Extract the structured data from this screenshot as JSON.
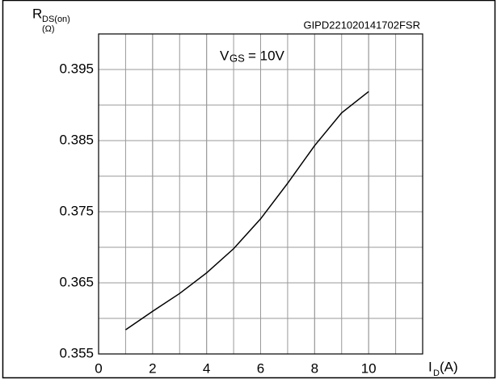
{
  "chart_data": {
    "type": "line",
    "code": "GIPD221020141702FSR",
    "annotation": {
      "main": "V",
      "sub": "GS",
      "rest": "= 10V"
    },
    "y_label": {
      "main": "R",
      "sub": "DS(on)",
      "unit": "(Ω)"
    },
    "x_label": {
      "main": "I",
      "sub": "D",
      "unit": "(A)"
    },
    "x": [
      1,
      2,
      3,
      4,
      5,
      6,
      7,
      8,
      9,
      10
    ],
    "series": [
      {
        "name": "VGS= 10V",
        "color": "#000000",
        "values": [
          0.3584,
          0.361,
          0.3635,
          0.3664,
          0.3698,
          0.374,
          0.379,
          0.3843,
          0.3889,
          0.3919
        ]
      }
    ],
    "xlim": [
      0,
      12
    ],
    "xticks": [
      0,
      2,
      4,
      6,
      8,
      10
    ],
    "ylim": [
      0.355,
      0.4
    ],
    "yticks": [
      0.355,
      0.365,
      0.375,
      0.385,
      0.395
    ],
    "grid": true
  }
}
